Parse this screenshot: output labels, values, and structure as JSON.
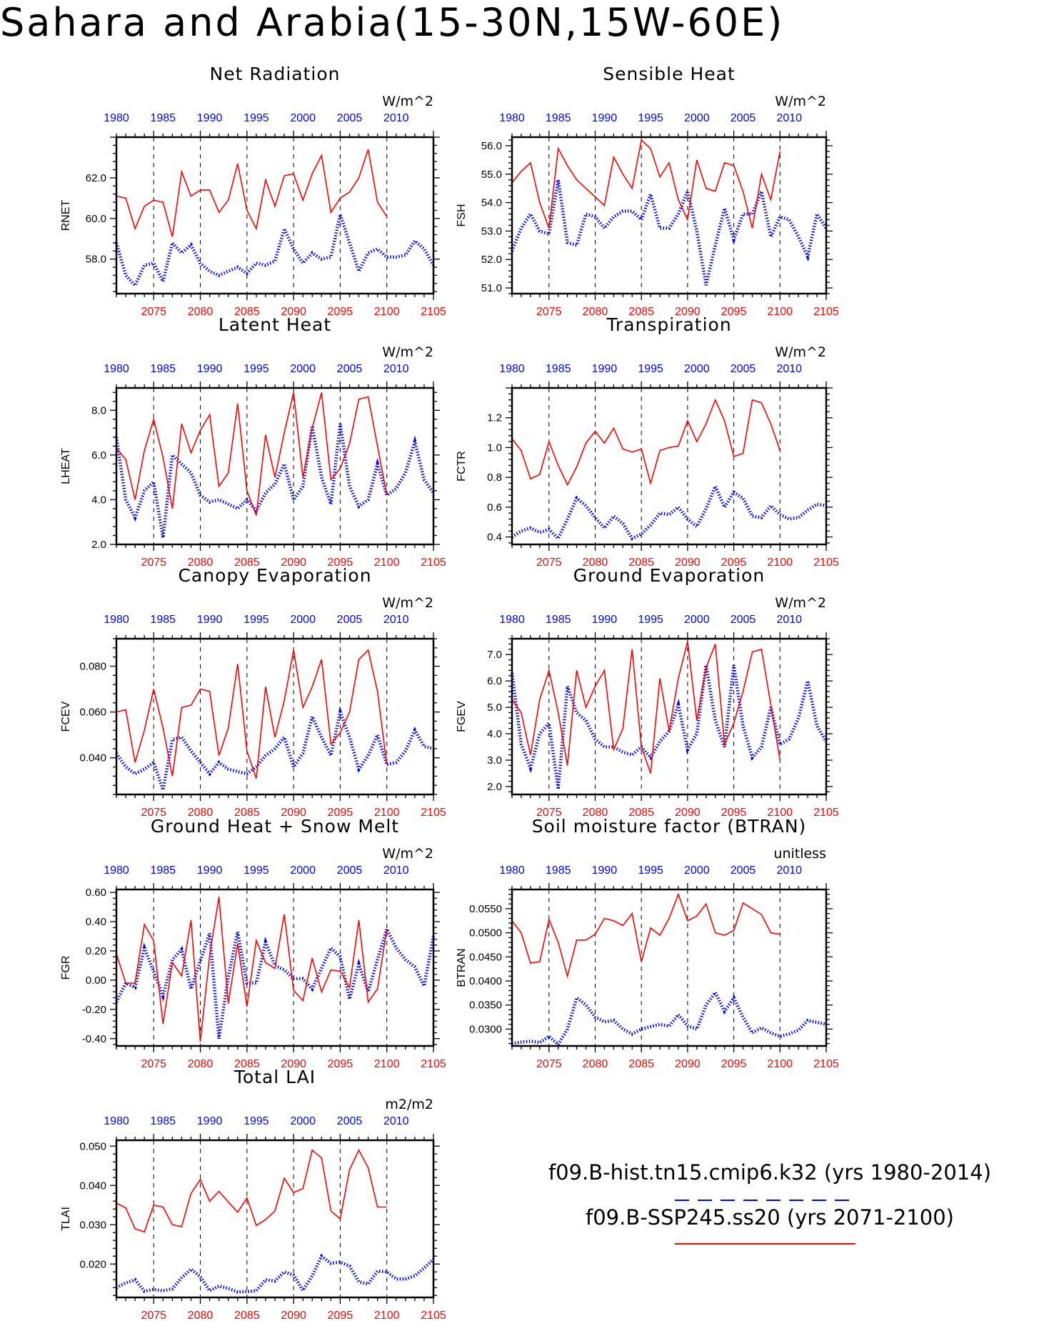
{
  "title": "Sahara and Arabia(15-30N,15W-60E)",
  "colors": {
    "hist": "#0000ff",
    "ssp": "#ff0000",
    "axis": "#000000"
  },
  "legend": [
    {
      "label": "f09.B-hist.tn15.cmip6.k32 (yrs 1980-2014)",
      "color": "#0000ff",
      "style": "dashed"
    },
    {
      "label": "f09.B-SSP245.ss20 (yrs 2071-2100)",
      "color": "#ff0000",
      "style": "solid"
    }
  ],
  "chart_data": [
    {
      "type": "line",
      "title": "Net Radiation",
      "units": "W/m^2",
      "ylabel": "RNET",
      "ylim": [
        56.3,
        64.0
      ],
      "yticks": [
        "58.0",
        "60.0",
        "62.0"
      ],
      "ytick_values": [
        58,
        60,
        62
      ],
      "x_top_ticks": [
        "1980",
        "1985",
        "1990",
        "1995",
        "2000",
        "2005",
        "2010"
      ],
      "x_bottom_ticks": [
        "2075",
        "2080",
        "2085",
        "2090",
        "2095",
        "2100",
        "2105"
      ],
      "series": [
        {
          "name": "f09.B-hist.tn15.cmip6.k32 (yrs 1980-2014)",
          "x_start": 1980,
          "values": [
            58.8,
            57.2,
            56.7,
            57.7,
            57.8,
            56.9,
            58.8,
            58.3,
            58.7,
            57.8,
            57.4,
            57.2,
            57.4,
            57.6,
            57.3,
            57.8,
            57.7,
            57.9,
            59.5,
            58.5,
            57.8,
            58.3,
            58.0,
            58.1,
            60.2,
            58.8,
            57.4,
            58.3,
            58.5,
            58.1,
            58.1,
            58.2,
            58.9,
            58.5,
            57.7
          ]
        },
        {
          "name": "f09.B-SSP245.ss20 (yrs 2071-2100)",
          "x_start": 2071,
          "values": [
            61.1,
            61.0,
            59.5,
            60.6,
            60.9,
            60.8,
            59.1,
            62.3,
            61.1,
            61.4,
            61.4,
            60.3,
            60.9,
            62.7,
            60.4,
            59.5,
            61.9,
            60.6,
            62.1,
            62.2,
            60.9,
            62.2,
            63.1,
            60.3,
            61.0,
            61.3,
            62.0,
            63.4,
            60.8,
            60.1
          ]
        }
      ]
    },
    {
      "type": "line",
      "title": "Sensible Heat",
      "units": "W/m^2",
      "ylabel": "FSH",
      "ylim": [
        50.8,
        56.3
      ],
      "yticks": [
        "51.0",
        "52.0",
        "53.0",
        "54.0",
        "55.0",
        "56.0"
      ],
      "ytick_values": [
        51,
        52,
        53,
        54,
        55,
        56
      ],
      "x_top_ticks": [
        "1980",
        "1985",
        "1990",
        "1995",
        "2000",
        "2005",
        "2010"
      ],
      "x_bottom_ticks": [
        "2075",
        "2080",
        "2085",
        "2090",
        "2095",
        "2100",
        "2105"
      ],
      "series": [
        {
          "name": "f09.B-hist.tn15.cmip6.k32 (yrs 1980-2014)",
          "x_start": 1980,
          "values": [
            52.3,
            53.1,
            53.6,
            53.0,
            52.9,
            54.8,
            52.6,
            52.5,
            53.6,
            53.5,
            53.1,
            53.5,
            53.7,
            53.7,
            53.4,
            54.3,
            53.1,
            53.1,
            53.6,
            54.4,
            53.0,
            51.1,
            52.5,
            53.8,
            52.7,
            53.6,
            53.6,
            54.4,
            52.8,
            53.5,
            53.4,
            52.8,
            52.1,
            53.6,
            53.1
          ]
        },
        {
          "name": "f09.B-SSP245.ss20 (yrs 2071-2100)",
          "x_start": 2071,
          "values": [
            54.7,
            55.1,
            55.4,
            54.0,
            53.1,
            55.9,
            55.3,
            54.8,
            54.5,
            54.2,
            53.9,
            55.6,
            55.0,
            54.5,
            56.2,
            55.9,
            54.9,
            55.4,
            54.1,
            53.4,
            55.5,
            54.5,
            54.4,
            55.4,
            55.3,
            54.4,
            53.1,
            55.0,
            54.1,
            55.8
          ]
        }
      ]
    },
    {
      "type": "line",
      "title": "Latent Heat",
      "units": "W/m^2",
      "ylabel": "LHEAT",
      "ylim": [
        2.0,
        9.0
      ],
      "yticks": [
        "2.0",
        "4.0",
        "6.0",
        "8.0"
      ],
      "ytick_values": [
        2,
        4,
        6,
        8
      ],
      "x_top_ticks": [
        "1980",
        "1985",
        "1990",
        "1995",
        "2000",
        "2005",
        "2010"
      ],
      "x_bottom_ticks": [
        "2075",
        "2080",
        "2085",
        "2090",
        "2095",
        "2100",
        "2105"
      ],
      "series": [
        {
          "name": "f09.B-hist.tn15.cmip6.k32 (yrs 1980-2014)",
          "x_start": 1980,
          "values": [
            6.8,
            4.0,
            3.2,
            4.4,
            4.8,
            2.3,
            6.0,
            5.6,
            5.2,
            4.2,
            3.9,
            4.0,
            3.8,
            3.6,
            4.0,
            3.5,
            4.3,
            4.7,
            5.6,
            4.0,
            4.6,
            7.3,
            5.0,
            3.8,
            7.4,
            4.6,
            3.7,
            4.0,
            5.6,
            4.2,
            4.5,
            5.2,
            6.6,
            4.9,
            4.3
          ]
        },
        {
          "name": "f09.B-SSP245.ss20 (yrs 2071-2100)",
          "x_start": 2071,
          "values": [
            6.3,
            5.8,
            4.0,
            6.2,
            7.6,
            5.9,
            3.6,
            7.4,
            6.1,
            7.1,
            7.8,
            4.6,
            5.2,
            8.3,
            4.4,
            3.3,
            6.9,
            5.0,
            7.0,
            8.8,
            5.0,
            7.2,
            8.8,
            4.9,
            5.4,
            6.5,
            8.5,
            8.6,
            6.4,
            4.2
          ]
        }
      ]
    },
    {
      "type": "line",
      "title": "Transpiration",
      "units": "W/m^2",
      "ylabel": "FCTR",
      "ylim": [
        0.35,
        1.4
      ],
      "yticks": [
        "0.4",
        "0.6",
        "0.8",
        "1.0",
        "1.2"
      ],
      "ytick_values": [
        0.4,
        0.6,
        0.8,
        1.0,
        1.2
      ],
      "x_top_ticks": [
        "1980",
        "1985",
        "1990",
        "1995",
        "2000",
        "2005",
        "2010"
      ],
      "x_bottom_ticks": [
        "2075",
        "2080",
        "2085",
        "2090",
        "2095",
        "2100",
        "2105"
      ],
      "series": [
        {
          "name": "f09.B-hist.tn15.cmip6.k32 (yrs 1980-2014)",
          "x_start": 1980,
          "values": [
            0.4,
            0.44,
            0.46,
            0.43,
            0.45,
            0.39,
            0.52,
            0.66,
            0.61,
            0.53,
            0.46,
            0.54,
            0.49,
            0.39,
            0.42,
            0.48,
            0.56,
            0.55,
            0.6,
            0.52,
            0.47,
            0.59,
            0.74,
            0.6,
            0.7,
            0.66,
            0.54,
            0.53,
            0.61,
            0.55,
            0.52,
            0.53,
            0.58,
            0.62,
            0.61
          ]
        },
        {
          "name": "f09.B-SSP245.ss20 (yrs 2071-2100)",
          "x_start": 2071,
          "values": [
            1.06,
            0.98,
            0.79,
            0.82,
            1.04,
            0.88,
            0.75,
            0.87,
            1.03,
            1.11,
            1.03,
            1.13,
            0.99,
            0.97,
            0.99,
            0.76,
            0.98,
            1.0,
            1.01,
            1.18,
            1.04,
            1.16,
            1.32,
            1.18,
            0.94,
            0.96,
            1.32,
            1.3,
            1.16,
            0.98
          ]
        }
      ]
    },
    {
      "type": "line",
      "title": "Canopy Evaporation",
      "units": "W/m^2",
      "ylabel": "FCEV",
      "ylim": [
        0.024,
        0.092
      ],
      "yticks": [
        "0.040",
        "0.060",
        "0.080"
      ],
      "ytick_values": [
        0.04,
        0.06,
        0.08
      ],
      "x_top_ticks": [
        "1980",
        "1985",
        "1990",
        "1995",
        "2000",
        "2005",
        "2010"
      ],
      "x_bottom_ticks": [
        "2075",
        "2080",
        "2085",
        "2090",
        "2095",
        "2100",
        "2105"
      ],
      "series": [
        {
          "name": "f09.B-hist.tn15.cmip6.k32 (yrs 1980-2014)",
          "x_start": 1980,
          "values": [
            0.042,
            0.036,
            0.033,
            0.035,
            0.038,
            0.026,
            0.048,
            0.049,
            0.043,
            0.038,
            0.033,
            0.038,
            0.035,
            0.034,
            0.033,
            0.036,
            0.041,
            0.044,
            0.049,
            0.036,
            0.042,
            0.058,
            0.049,
            0.041,
            0.06,
            0.049,
            0.035,
            0.041,
            0.05,
            0.037,
            0.038,
            0.043,
            0.052,
            0.045,
            0.044
          ]
        },
        {
          "name": "f09.B-SSP245.ss20 (yrs 2071-2100)",
          "x_start": 2071,
          "values": [
            0.06,
            0.061,
            0.038,
            0.052,
            0.07,
            0.053,
            0.032,
            0.062,
            0.063,
            0.07,
            0.069,
            0.041,
            0.053,
            0.081,
            0.043,
            0.031,
            0.071,
            0.049,
            0.065,
            0.087,
            0.062,
            0.071,
            0.083,
            0.046,
            0.051,
            0.06,
            0.083,
            0.087,
            0.069,
            0.037
          ]
        }
      ]
    },
    {
      "type": "line",
      "title": "Ground Evaporation",
      "units": "W/m^2",
      "ylabel": "FGEV",
      "ylim": [
        1.7,
        7.6
      ],
      "yticks": [
        "2.0",
        "3.0",
        "4.0",
        "5.0",
        "6.0",
        "7.0"
      ],
      "ytick_values": [
        2,
        3,
        4,
        5,
        6,
        7
      ],
      "x_top_ticks": [
        "1980",
        "1985",
        "1990",
        "1995",
        "2000",
        "2005",
        "2010"
      ],
      "x_bottom_ticks": [
        "2075",
        "2080",
        "2085",
        "2090",
        "2095",
        "2100",
        "2105"
      ],
      "series": [
        {
          "name": "f09.B-hist.tn15.cmip6.k32 (yrs 1980-2014)",
          "x_start": 1980,
          "values": [
            6.3,
            3.6,
            2.7,
            4.0,
            4.4,
            1.9,
            5.8,
            4.8,
            4.5,
            3.8,
            3.5,
            3.5,
            3.3,
            3.2,
            3.5,
            3.1,
            3.7,
            4.1,
            5.1,
            3.4,
            4.0,
            6.6,
            4.5,
            3.5,
            6.6,
            4.3,
            3.1,
            3.5,
            5.0,
            3.6,
            3.8,
            4.6,
            6.0,
            4.3,
            3.7
          ]
        },
        {
          "name": "f09.B-SSP245.ss20 (yrs 2071-2100)",
          "x_start": 2071,
          "values": [
            5.3,
            4.8,
            3.2,
            5.3,
            6.4,
            4.8,
            2.8,
            6.4,
            5.0,
            5.8,
            6.4,
            3.4,
            4.2,
            7.2,
            3.5,
            2.5,
            6.1,
            4.1,
            6.1,
            7.5,
            4.5,
            6.5,
            7.4,
            3.6,
            4.4,
            5.6,
            7.1,
            7.2,
            5.1,
            3.0
          ]
        }
      ]
    },
    {
      "type": "line",
      "title": "Ground Heat + Snow Melt",
      "units": "W/m^2",
      "ylabel": "FGR",
      "ylim": [
        -0.45,
        0.62
      ],
      "yticks": [
        "-0.40",
        "-0.20",
        "0.00",
        "0.20",
        "0.40",
        "0.60"
      ],
      "ytick_values": [
        -0.4,
        -0.2,
        0.0,
        0.2,
        0.4,
        0.6
      ],
      "x_top_ticks": [
        "1980",
        "1985",
        "1990",
        "1995",
        "2000",
        "2005",
        "2010"
      ],
      "x_bottom_ticks": [
        "2075",
        "2080",
        "2085",
        "2090",
        "2095",
        "2100",
        "2105"
      ],
      "series": [
        {
          "name": "f09.B-hist.tn15.cmip6.k32 (yrs 1980-2014)",
          "x_start": 1980,
          "values": [
            -0.15,
            -0.02,
            -0.05,
            0.22,
            0.06,
            -0.11,
            0.14,
            0.21,
            -0.06,
            0.13,
            0.32,
            -0.4,
            0.02,
            0.33,
            -0.02,
            -0.02,
            0.26,
            0.1,
            0.07,
            0.01,
            0.01,
            -0.06,
            0.08,
            0.22,
            0.16,
            -0.13,
            0.11,
            -0.08,
            0.14,
            0.35,
            0.22,
            0.14,
            0.09,
            -0.04,
            0.3
          ]
        },
        {
          "name": "f09.B-SSP245.ss20 (yrs 2071-2100)",
          "x_start": 2071,
          "values": [
            0.18,
            -0.02,
            -0.02,
            0.38,
            0.27,
            -0.3,
            0.12,
            0.03,
            0.41,
            -0.42,
            0.17,
            0.57,
            -0.16,
            0.25,
            -0.18,
            0.27,
            0.12,
            0.08,
            0.45,
            -0.07,
            -0.14,
            0.15,
            -0.08,
            0.07,
            0.06,
            -0.05,
            0.41,
            -0.15,
            -0.06,
            0.35
          ]
        }
      ]
    },
    {
      "type": "line",
      "title": "Soil moisture factor (BTRAN)",
      "units": "unitless",
      "ylabel": "BTRAN",
      "ylim": [
        0.0265,
        0.059
      ],
      "yticks": [
        "0.0300",
        "0.0350",
        "0.0400",
        "0.0450",
        "0.0500",
        "0.0550"
      ],
      "ytick_values": [
        0.03,
        0.035,
        0.04,
        0.045,
        0.05,
        0.055
      ],
      "x_top_ticks": [
        "1980",
        "1985",
        "1990",
        "1995",
        "2000",
        "2005",
        "2010"
      ],
      "x_bottom_ticks": [
        "2075",
        "2080",
        "2085",
        "2090",
        "2095",
        "2100",
        "2105"
      ],
      "series": [
        {
          "name": "f09.B-hist.tn15.cmip6.k32 (yrs 1980-2014)",
          "x_start": 1980,
          "values": [
            0.027,
            0.0273,
            0.0275,
            0.0272,
            0.0285,
            0.0268,
            0.03,
            0.0365,
            0.035,
            0.0325,
            0.0315,
            0.0318,
            0.03,
            0.029,
            0.03,
            0.0305,
            0.031,
            0.0306,
            0.033,
            0.0307,
            0.03,
            0.035,
            0.0376,
            0.0337,
            0.0365,
            0.0325,
            0.0292,
            0.0303,
            0.0292,
            0.0285,
            0.029,
            0.0298,
            0.0318,
            0.0314,
            0.031
          ]
        },
        {
          "name": "f09.B-SSP245.ss20 (yrs 2071-2100)",
          "x_start": 2071,
          "values": [
            0.0525,
            0.05,
            0.0437,
            0.044,
            0.0528,
            0.048,
            0.041,
            0.0485,
            0.0485,
            0.0497,
            0.053,
            0.0525,
            0.0515,
            0.054,
            0.044,
            0.051,
            0.0495,
            0.053,
            0.058,
            0.0525,
            0.0535,
            0.056,
            0.05,
            0.0495,
            0.0505,
            0.0562,
            0.055,
            0.0538,
            0.05,
            0.0497
          ]
        }
      ]
    },
    {
      "type": "line",
      "title": "Total LAI",
      "units": "m2/m2",
      "ylabel": "TLAI",
      "ylim": [
        0.0115,
        0.0515
      ],
      "yticks": [
        "0.020",
        "0.030",
        "0.040",
        "0.050"
      ],
      "ytick_values": [
        0.02,
        0.03,
        0.04,
        0.05
      ],
      "x_top_ticks": [
        "1980",
        "1985",
        "1990",
        "1995",
        "2000",
        "2005",
        "2010"
      ],
      "x_bottom_ticks": [
        "2075",
        "2080",
        "2085",
        "2090",
        "2095",
        "2100",
        "2105"
      ],
      "series": [
        {
          "name": "f09.B-hist.tn15.cmip6.k32 (yrs 1980-2014)",
          "x_start": 1980,
          "values": [
            0.014,
            0.0152,
            0.016,
            0.0131,
            0.0135,
            0.0132,
            0.0137,
            0.0165,
            0.0187,
            0.0168,
            0.0132,
            0.0144,
            0.0138,
            0.0129,
            0.013,
            0.0132,
            0.016,
            0.0157,
            0.018,
            0.0172,
            0.0133,
            0.017,
            0.022,
            0.0202,
            0.0205,
            0.0195,
            0.0155,
            0.0149,
            0.0182,
            0.018,
            0.0162,
            0.0162,
            0.017,
            0.019,
            0.0212
          ]
        },
        {
          "name": "f09.B-SSP245.ss20 (yrs 2071-2100)",
          "x_start": 2071,
          "values": [
            0.0355,
            0.0343,
            0.029,
            0.0282,
            0.035,
            0.0345,
            0.03,
            0.0295,
            0.038,
            0.0415,
            0.036,
            0.0385,
            0.0358,
            0.0332,
            0.0368,
            0.0298,
            0.0313,
            0.0335,
            0.0418,
            0.0382,
            0.0392,
            0.049,
            0.047,
            0.0335,
            0.0315,
            0.044,
            0.049,
            0.0445,
            0.0345,
            0.0345
          ]
        }
      ]
    }
  ]
}
